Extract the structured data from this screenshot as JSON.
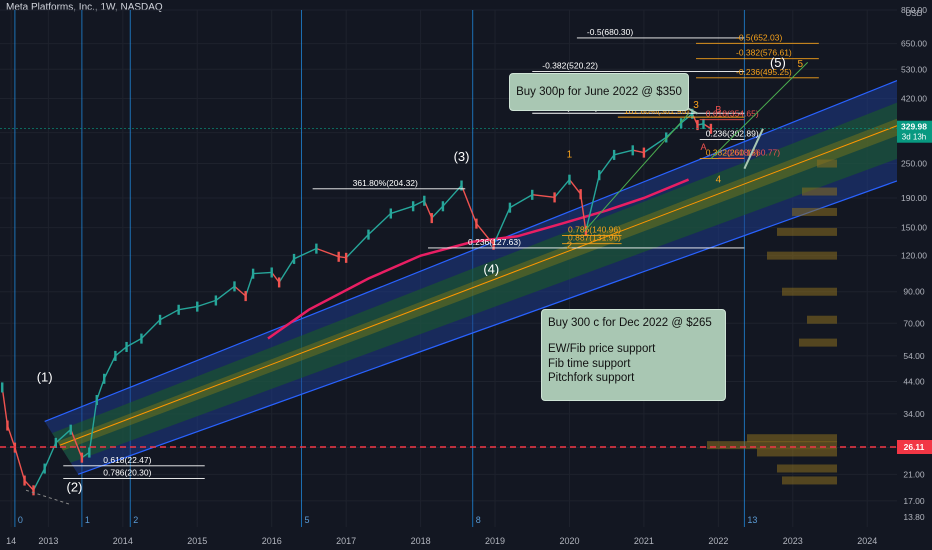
{
  "title": "Meta Platforms, Inc., 1W, NASDAQ",
  "currency": "USD",
  "chart_data": {
    "type": "line",
    "title": "Meta Platforms, Inc., 1W, NASDAQ",
    "y_scale": "log",
    "ylim": [
      13.8,
      850
    ],
    "xlim": [
      2012.35,
      2024.4
    ],
    "y_ticks": [
      "17.00",
      "21.00",
      "26.00",
      "34.00",
      "44.00",
      "54.00",
      "70.00",
      "90.00",
      "120.00",
      "150.00",
      "190.00",
      "250.00",
      "320.00",
      "420.00",
      "530.00",
      "650.00",
      "850.00",
      "13.80"
    ],
    "y_tick_values": [
      17,
      21,
      26,
      34,
      44,
      54,
      70,
      90,
      120,
      150,
      190,
      250,
      320,
      420,
      530,
      650,
      850,
      13.8
    ],
    "x_ticks": [
      "14",
      "2013",
      "2014",
      "2015",
      "2016",
      "2017",
      "2018",
      "2019",
      "2020",
      "2021",
      "2022",
      "2023",
      "2024"
    ],
    "x_tick_values": [
      2012.5,
      2013.0,
      2014.0,
      2015.0,
      2016.0,
      2017.0,
      2018.0,
      2019.0,
      2020.0,
      2021.0,
      2022.0,
      2023.0,
      2024.0
    ],
    "price_series": {
      "name": "META",
      "x": [
        2012.38,
        2012.45,
        2012.55,
        2012.68,
        2012.8,
        2012.95,
        2013.1,
        2013.3,
        2013.45,
        2013.55,
        2013.65,
        2013.75,
        2013.9,
        2014.05,
        2014.25,
        2014.5,
        2014.75,
        2015.0,
        2015.25,
        2015.5,
        2015.65,
        2015.75,
        2016.0,
        2016.1,
        2016.3,
        2016.6,
        2016.9,
        2017.0,
        2017.3,
        2017.6,
        2017.9,
        2018.05,
        2018.15,
        2018.3,
        2018.55,
        2018.75,
        2018.98,
        2019.2,
        2019.5,
        2019.8,
        2020.0,
        2020.15,
        2020.22,
        2020.4,
        2020.6,
        2020.85,
        2021.0,
        2021.3,
        2021.5,
        2021.65,
        2021.72,
        2021.8,
        2021.9
      ],
      "y": [
        42,
        31,
        26,
        20,
        18.5,
        22,
        27,
        30,
        24,
        25,
        38,
        45,
        54,
        58,
        62,
        72,
        78,
        80,
        84,
        94,
        87,
        104,
        105,
        97,
        117,
        127,
        119,
        118,
        142,
        168,
        178,
        186,
        162,
        178,
        210,
        155,
        131,
        176,
        195,
        191,
        220,
        196,
        146,
        228,
        268,
        278,
        273,
        308,
        345,
        372,
        340,
        343,
        330
      ]
    },
    "fib_levels": [
      {
        "label": "-0.5(680.30)",
        "value": 680.3
      },
      {
        "label": "-0.382(520.22)",
        "value": 520.22
      },
      {
        "label": "-0.236(373.27)",
        "value": 373.27
      },
      {
        "label": "361.80%(204.32)",
        "value": 204.32
      },
      {
        "label": "0.236(127.63)",
        "value": 127.63
      },
      {
        "label": "0.618(22.47)",
        "value": 22.47
      },
      {
        "label": "0.786(20.30)",
        "value": 20.3
      },
      {
        "label": "-0.5(652.03)",
        "value": 652.03
      },
      {
        "label": "-0.382(576.61)",
        "value": 576.61
      },
      {
        "label": "-0.236(495.25)",
        "value": 495.25
      },
      {
        "label": "161.80%(361.95)",
        "value": 361.95
      },
      {
        "label": "0.618(354.65)",
        "value": 354.65
      },
      {
        "label": "0.236(302.89)",
        "value": 302.89
      },
      {
        "label": "0.382(260.15)",
        "value": 260.15
      },
      {
        "label": "-0.618(260.77)",
        "value": 260.77
      },
      {
        "label": "0.786(140.96)",
        "value": 140.96
      },
      {
        "label": "0.887(131.96)",
        "value": 131.96
      }
    ],
    "wave_labels": [
      "(1)",
      "(2)",
      "(3)",
      "(4)",
      "(5)",
      "1",
      "2",
      "3",
      "4",
      "5",
      "A",
      "B"
    ],
    "time_labels": [
      "0",
      "1",
      "2",
      "5",
      "8",
      "13"
    ],
    "annotations": [
      "Buy 300p for June 2022 @ $350",
      "Buy 300 c for Dec 2022 @ $265",
      "EW/Fib price support",
      "Fib time support",
      "Pitchfork support"
    ],
    "current_price": "329.98",
    "countdown": "3d 13h",
    "support_price": "26.11",
    "grid": true
  },
  "callouts": {
    "top": "Buy 300p for June 2022 @ $350",
    "bottom_title": "Buy 300 c for Dec 2022 @ $265",
    "bottom_lines": [
      "EW/Fib price support",
      "Fib time support",
      "Pitchfork support"
    ]
  },
  "colors": {
    "background": "#131722",
    "candle_up": "#26a69a",
    "candle_down": "#ef5350",
    "ma_line": "#e91e63",
    "support_line": "#f23645",
    "fib_white": "#ffffff",
    "fib_orange": "#f7a21b",
    "pitchfork_blue": "#2962ff",
    "pitchfork_green": "#4caf50",
    "callout_bg": "#a9c7b3",
    "time_line": "#2196f3",
    "price_badge": "#089981"
  }
}
